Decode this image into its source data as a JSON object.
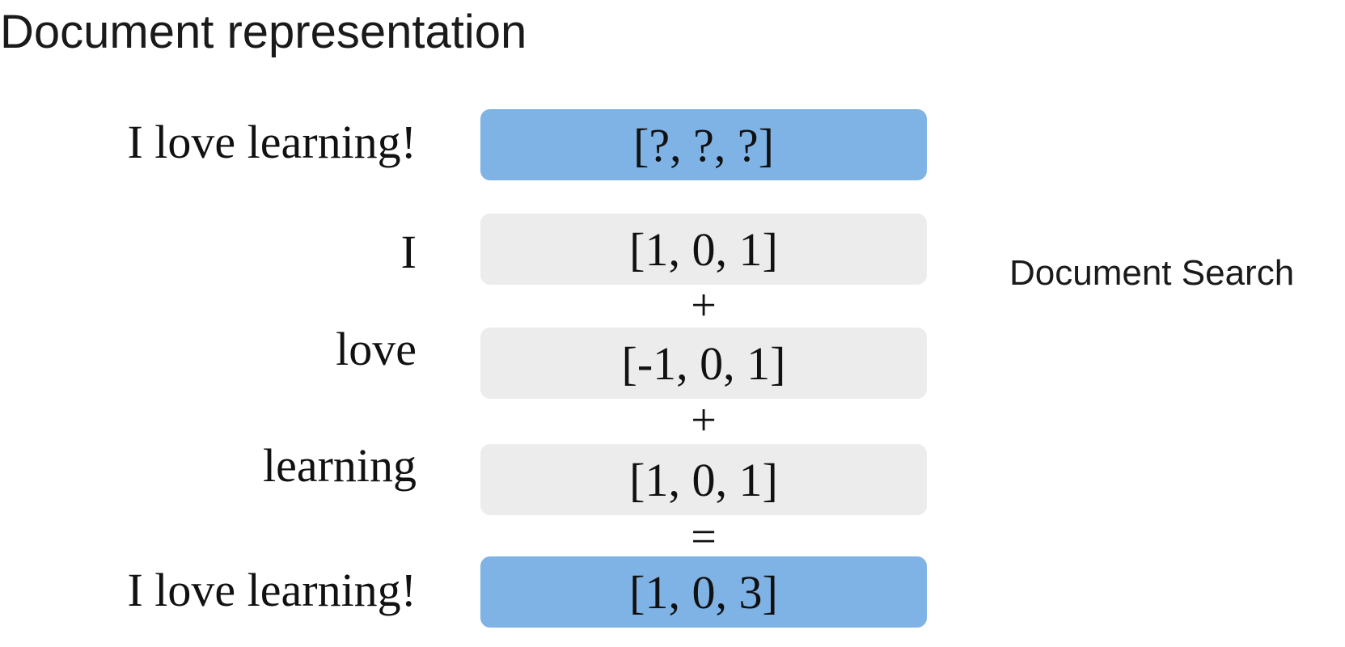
{
  "title": "Document representation",
  "side_label": "Document Search",
  "colors": {
    "result_box": "#7fb3e5",
    "word_box": "#ececec"
  },
  "rows": [
    {
      "label": "I love learning!",
      "vector": "[?, ?, ?]"
    },
    {
      "label": "I",
      "vector": "[1, 0, 1]"
    },
    {
      "label": "love",
      "vector": "[-1, 0, 1]"
    },
    {
      "label": "learning",
      "vector": "[1, 0, 1]"
    },
    {
      "label": "I love learning!",
      "vector": "[1, 0, 3]"
    }
  ],
  "operators": [
    "+",
    "+",
    "="
  ]
}
